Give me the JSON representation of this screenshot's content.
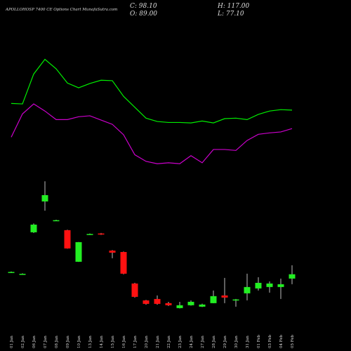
{
  "chart_data": {
    "type": "candlestick",
    "title": "APOLLOHOSP 7400 CE Options Chart MunafaSutra.com",
    "ohlc_labels": {
      "close": "C: 98.10",
      "high": "H: 117.00",
      "open": "O: 89.00",
      "low": "L: 77.10"
    },
    "categories": [
      "01 Jan",
      "02 Jan",
      "06 Jan",
      "07 Jan",
      "08 Jan",
      "09 Jan",
      "10 Jan",
      "13 Jan",
      "14 Jan",
      "15 Jan",
      "16 Jan",
      "17 Jan",
      "20 Jan",
      "21 Jan",
      "22 Jan",
      "23 Jan",
      "24 Jan",
      "27 Jan",
      "28 Jan",
      "29 Jan",
      "30 Jan",
      "31 Jan",
      "01 Feb",
      "03 Feb",
      "04 Feb",
      "05 Feb"
    ],
    "open": [
      102,
      98,
      186.5,
      251.5,
      211,
      191,
      124.4,
      182,
      184,
      148,
      145,
      78.6,
      43,
      46,
      37.2,
      26.8,
      32.8,
      29.8,
      37.2,
      53.4,
      44,
      57.9,
      68.2,
      71.2,
      71.2,
      89
    ],
    "high": [
      104,
      100,
      205,
      294,
      213,
      192,
      166,
      184,
      185,
      149,
      146,
      80,
      44,
      53.4,
      40,
      40,
      43,
      36,
      63.8,
      90.4,
      46,
      99.3,
      91.9,
      83,
      89,
      117
    ],
    "low": [
      101,
      97,
      185,
      232,
      210,
      152,
      124,
      181,
      181,
      131.8,
      98,
      49,
      34,
      34,
      31.3,
      26,
      32,
      29,
      37,
      37.2,
      29.8,
      43,
      63.8,
      59.4,
      46,
      77.1
    ],
    "close": [
      103,
      99,
      202.7,
      264.8,
      212,
      152.5,
      165.8,
      183,
      182,
      143.6,
      99.3,
      50.5,
      35.7,
      35.7,
      32.8,
      32.8,
      40.1,
      34.3,
      52,
      49,
      45,
      71.2,
      80,
      78.6,
      77.1,
      98.1
    ],
    "up_color": "#22ee22",
    "down_color": "#ff1111",
    "lines": [
      {
        "color": "#00ee00",
        "values": [
          458,
          457,
          520,
          551,
          531,
          501,
          491,
          500,
          507,
          506,
          473,
          450,
          427,
          420,
          418,
          418,
          417,
          421,
          417,
          426,
          427,
          424,
          435,
          442,
          445,
          444
        ]
      },
      {
        "color": "#cc00cc",
        "values": [
          387,
          436,
          457,
          442,
          424,
          424,
          430,
          432,
          423,
          414,
          392,
          350,
          336,
          331,
          333,
          331,
          348,
          333,
          361,
          361,
          359,
          380,
          393,
          396,
          398,
          405
        ]
      }
    ],
    "ylim": [
      0,
      676
    ]
  }
}
